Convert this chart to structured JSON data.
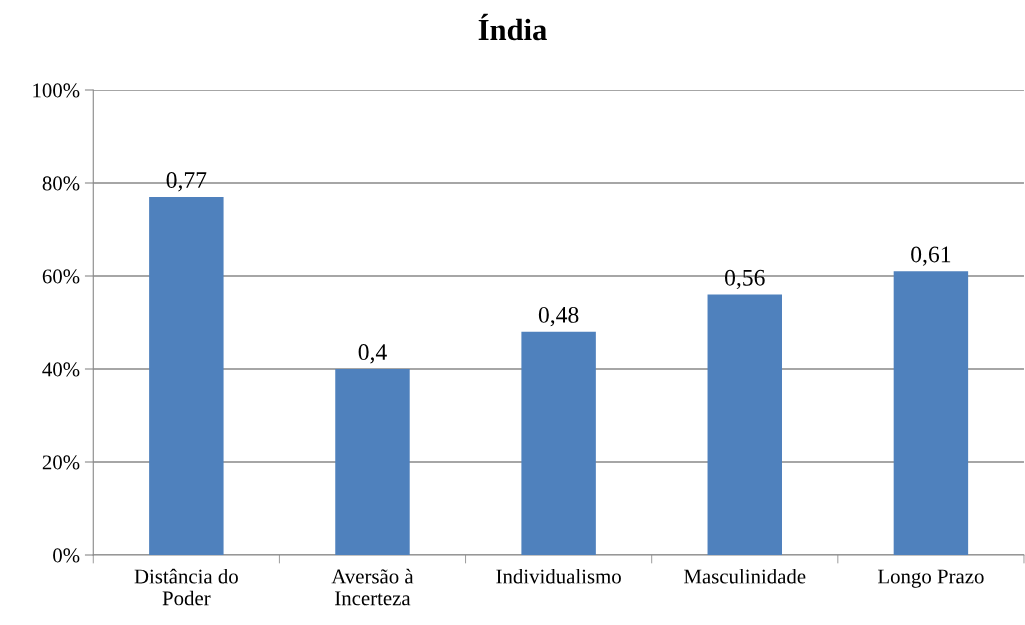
{
  "chart_data": {
    "type": "bar",
    "title": "Índia",
    "categories": [
      "Distância do\nPoder",
      "Aversão à\nIncerteza",
      "Individualismo",
      "Masculinidade",
      "Longo Prazo"
    ],
    "values": [
      0.77,
      0.4,
      0.48,
      0.56,
      0.61
    ],
    "value_labels": [
      "0,77",
      "0,4",
      "0,48",
      "0,56",
      "0,61"
    ],
    "color": "#4f81bd",
    "ylim": [
      0,
      1
    ],
    "yticks": [
      {
        "value": 0,
        "label": "0%"
      },
      {
        "value": 0.2,
        "label": "20%"
      },
      {
        "value": 0.4,
        "label": "40%"
      },
      {
        "value": 0.6,
        "label": "60%"
      },
      {
        "value": 0.8,
        "label": "80%"
      },
      {
        "value": 1,
        "label": "100%"
      }
    ],
    "grid": "y",
    "legend": false
  }
}
